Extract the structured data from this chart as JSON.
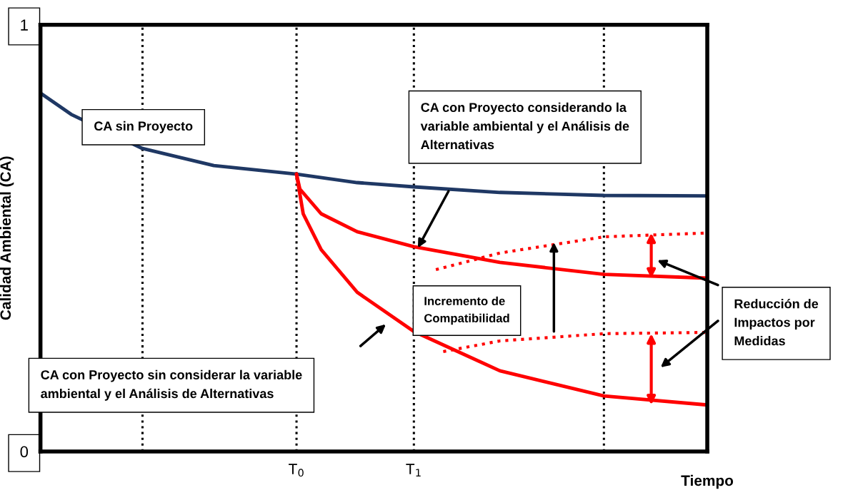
{
  "chart_data": {
    "type": "line",
    "xlabel": "Tiempo",
    "ylabel": "Calidad Ambiental (CA)",
    "xlim": [
      0,
      1
    ],
    "ylim": [
      0,
      1
    ],
    "xticks": [
      {
        "value": 0.384,
        "label": "T$_{0}$"
      },
      {
        "value": 0.56,
        "label": "T$_{1}$"
      }
    ],
    "yticks": [
      0,
      1
    ],
    "grid": false,
    "legend": false,
    "marker": "none",
    "series": [
      {
        "color": "#1f3864",
        "line_style": "solid",
        "x": [
          0,
          0.046,
          0.153,
          0.26,
          0.384,
          0.475,
          0.56,
          0.689,
          0.845,
          1
        ],
        "values": [
          0.84,
          0.79,
          0.71,
          0.67,
          0.65,
          0.63,
          0.62,
          0.607,
          0.6,
          0.599
        ]
      },
      {
        "color": "#ff0000",
        "line_style": "solid",
        "x": [
          0.384,
          0.389,
          0.421,
          0.475,
          0.56,
          0.689,
          0.845,
          1
        ],
        "values": [
          0.65,
          0.615,
          0.557,
          0.515,
          0.48,
          0.443,
          0.415,
          0.406
        ]
      },
      {
        "color": "#ff0000",
        "line_style": "solid",
        "x": [
          0.384,
          0.394,
          0.421,
          0.475,
          0.56,
          0.689,
          0.845,
          1
        ],
        "values": [
          0.65,
          0.557,
          0.473,
          0.373,
          0.281,
          0.189,
          0.13,
          0.109
        ]
      },
      {
        "color": "#ff0000",
        "line_style": "dotted",
        "x": [
          0.593,
          0.689,
          0.845,
          1
        ],
        "values": [
          0.426,
          0.465,
          0.503,
          0.512
        ]
      },
      {
        "color": "#ff0000",
        "line_style": "dotted",
        "x": [
          0.604,
          0.689,
          0.845,
          1
        ],
        "values": [
          0.234,
          0.259,
          0.276,
          0.279
        ]
      }
    ],
    "ref_lines": [
      {
        "axis": "x",
        "value": 0.153,
        "color": "#000000",
        "line_style": "dotted"
      },
      {
        "axis": "x",
        "value": 0.384,
        "color": "#000000",
        "line_style": "dotted"
      },
      {
        "axis": "x",
        "value": 0.56,
        "color": "#000000",
        "line_style": "dotted"
      },
      {
        "axis": "x",
        "value": 0.845,
        "color": "#000000",
        "line_style": "dotted"
      }
    ],
    "annotations": [
      "CA sin Proyecto",
      "CA con Proyecto considerando la\nvariable ambiental y el Análisis de\nAlternativas",
      "Incremento de\nCompatibilidad",
      "CA con Proyecto sin considerar la variable\nambiental y el Análisis de Alternativas",
      "Reducción de\nImpactos por\nMedidas"
    ]
  }
}
